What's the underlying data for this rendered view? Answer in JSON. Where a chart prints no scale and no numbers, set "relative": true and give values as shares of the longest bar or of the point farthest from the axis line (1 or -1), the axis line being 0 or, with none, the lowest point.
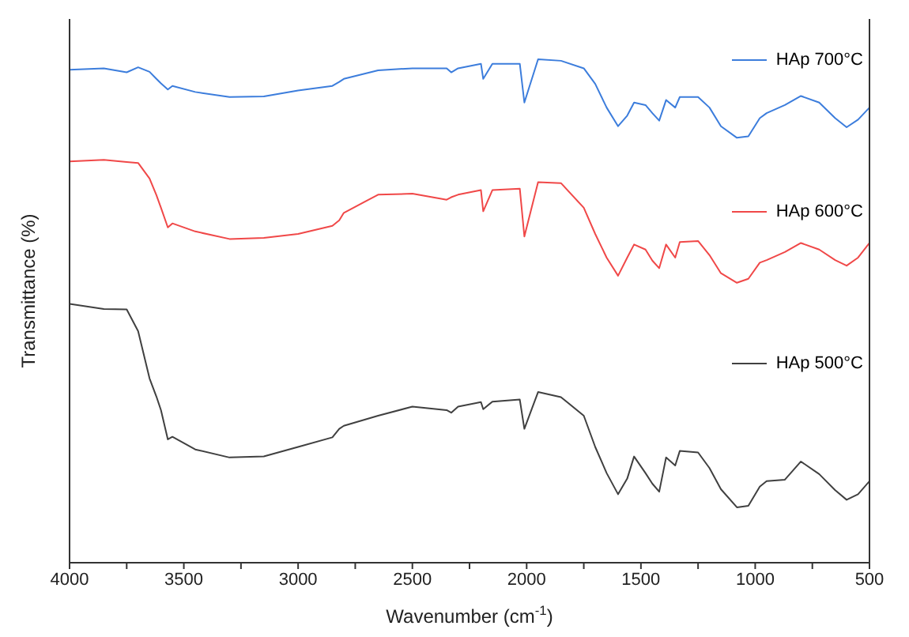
{
  "chart_data": {
    "type": "line",
    "relative": true,
    "xlabel": "Wavenumber (cm$^{-1}$)",
    "ylabel": "Transmittance (%)",
    "xlim": [
      4000,
      500
    ],
    "xticks": [
      4000,
      {
        "value": 3750,
        "label": null
      },
      3500,
      {
        "value": 3250,
        "label": null
      },
      3000,
      {
        "value": 2750,
        "label": null
      },
      2500,
      {
        "value": 2250,
        "label": null
      },
      2000,
      {
        "value": 1750,
        "label": null
      },
      1500,
      {
        "value": 1250,
        "label": null
      },
      1000,
      {
        "value": 750,
        "label": null
      },
      500
    ],
    "x": [
      4000,
      3850,
      3750,
      3700,
      3650,
      3620,
      3600,
      3570,
      3550,
      3450,
      3300,
      3150,
      3000,
      2850,
      2820,
      2800,
      2650,
      2500,
      2350,
      2330,
      2300,
      2200,
      2190,
      2150,
      2030,
      2010,
      1950,
      1850,
      1750,
      1700,
      1650,
      1600,
      1560,
      1530,
      1480,
      1450,
      1420,
      1390,
      1350,
      1330,
      1250,
      1200,
      1150,
      1080,
      1030,
      980,
      950,
      870,
      800,
      720,
      650,
      600,
      550,
      500
    ],
    "series": [
      {
        "name": "HAp 700°C",
        "color": "#3c7ddc",
        "values": [
          0.979,
          0.982,
          0.974,
          0.984,
          0.975,
          0.961,
          0.952,
          0.94,
          0.947,
          0.935,
          0.925,
          0.926,
          0.938,
          0.947,
          0.955,
          0.961,
          0.978,
          0.982,
          0.982,
          0.974,
          0.982,
          0.991,
          0.961,
          0.991,
          0.991,
          0.914,
          1.0,
          0.997,
          0.982,
          0.951,
          0.904,
          0.867,
          0.888,
          0.914,
          0.909,
          0.893,
          0.878,
          0.919,
          0.904,
          0.925,
          0.925,
          0.904,
          0.867,
          0.844,
          0.847,
          0.883,
          0.893,
          0.909,
          0.927,
          0.914,
          0.883,
          0.865,
          0.88,
          0.904
        ]
      },
      {
        "name": "HAp 600°C",
        "color": "#f04848",
        "values": [
          0.797,
          0.8,
          0.796,
          0.794,
          0.763,
          0.73,
          0.705,
          0.666,
          0.674,
          0.658,
          0.643,
          0.645,
          0.653,
          0.669,
          0.68,
          0.695,
          0.731,
          0.733,
          0.721,
          0.726,
          0.731,
          0.74,
          0.698,
          0.74,
          0.743,
          0.648,
          0.756,
          0.754,
          0.705,
          0.653,
          0.606,
          0.57,
          0.606,
          0.632,
          0.622,
          0.6,
          0.585,
          0.632,
          0.606,
          0.637,
          0.639,
          0.611,
          0.575,
          0.556,
          0.564,
          0.596,
          0.601,
          0.617,
          0.635,
          0.622,
          0.601,
          0.59,
          0.606,
          0.635
        ]
      },
      {
        "name": "HAp 500°C",
        "color": "#404040",
        "values": [
          0.514,
          0.504,
          0.503,
          0.46,
          0.366,
          0.33,
          0.303,
          0.245,
          0.25,
          0.225,
          0.209,
          0.211,
          0.23,
          0.249,
          0.266,
          0.272,
          0.292,
          0.31,
          0.303,
          0.298,
          0.31,
          0.319,
          0.305,
          0.32,
          0.324,
          0.266,
          0.339,
          0.329,
          0.292,
          0.23,
          0.178,
          0.136,
          0.167,
          0.211,
          0.178,
          0.157,
          0.141,
          0.209,
          0.193,
          0.222,
          0.219,
          0.188,
          0.146,
          0.11,
          0.113,
          0.151,
          0.162,
          0.165,
          0.201,
          0.176,
          0.144,
          0.125,
          0.136,
          0.162
        ]
      }
    ],
    "legend": "right",
    "grid": false,
    "marker": "none",
    "line_style": "solid"
  }
}
